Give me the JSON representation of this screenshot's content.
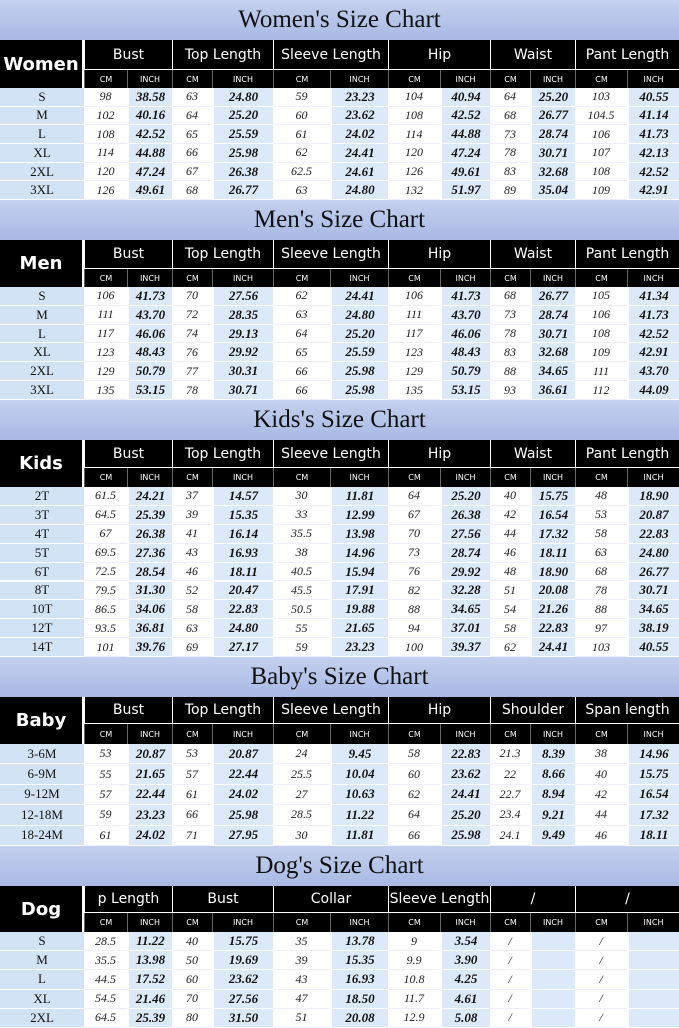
{
  "sections": [
    {
      "title": "Women's Size Chart",
      "label": "Women",
      "headers": [
        "Bust",
        "Top Length",
        "Sleeve Length",
        "Hip",
        "Waist",
        "Pant Length"
      ],
      "units": [
        "CM",
        "INCH",
        "CM",
        "INCH",
        "CM",
        "INCH",
        "CM",
        "INCH",
        "CM",
        "INCH",
        "CM",
        "INCH"
      ],
      "rows": [
        [
          "S",
          "98",
          "38.58",
          "63",
          "24.80",
          "59",
          "23.23",
          "104",
          "40.94",
          "64",
          "25.20",
          "103",
          "40.55"
        ],
        [
          "M",
          "102",
          "40.16",
          "64",
          "25.20",
          "60",
          "23.62",
          "108",
          "42.52",
          "68",
          "26.77",
          "104.5",
          "41.14"
        ],
        [
          "L",
          "108",
          "42.52",
          "65",
          "25.59",
          "61",
          "24.02",
          "114",
          "44.88",
          "73",
          "28.74",
          "106",
          "41.73"
        ],
        [
          "XL",
          "114",
          "44.88",
          "66",
          "25.98",
          "62",
          "24.41",
          "120",
          "47.24",
          "78",
          "30.71",
          "107",
          "42.13"
        ],
        [
          "2XL",
          "120",
          "47.24",
          "67",
          "26.38",
          "62.5",
          "24.61",
          "126",
          "49.61",
          "83",
          "32.68",
          "108",
          "42.52"
        ],
        [
          "3XL",
          "126",
          "49.61",
          "68",
          "26.77",
          "63",
          "24.80",
          "132",
          "51.97",
          "89",
          "35.04",
          "109",
          "42.91"
        ]
      ]
    },
    {
      "title": "Men's Size Chart",
      "label": "Men",
      "headers": [
        "Bust",
        "Top Length",
        "Sleeve Length",
        "Hip",
        "Waist",
        "Pant Length"
      ],
      "units": [
        "CM",
        "INCH",
        "CM",
        "INCH",
        "CM",
        "INCH",
        "CM",
        "INCH",
        "CM",
        "INCH",
        "CM",
        "INCH"
      ],
      "rows": [
        [
          "S",
          "106",
          "41.73",
          "70",
          "27.56",
          "62",
          "24.41",
          "106",
          "41.73",
          "68",
          "26.77",
          "105",
          "41.34"
        ],
        [
          "M",
          "111",
          "43.70",
          "72",
          "28.35",
          "63",
          "24.80",
          "111",
          "43.70",
          "73",
          "28.74",
          "106",
          "41.73"
        ],
        [
          "L",
          "117",
          "46.06",
          "74",
          "29.13",
          "64",
          "25.20",
          "117",
          "46.06",
          "78",
          "30.71",
          "108",
          "42.52"
        ],
        [
          "XL",
          "123",
          "48.43",
          "76",
          "29.92",
          "65",
          "25.59",
          "123",
          "48.43",
          "83",
          "32.68",
          "109",
          "42.91"
        ],
        [
          "2XL",
          "129",
          "50.79",
          "77",
          "30.31",
          "66",
          "25.98",
          "129",
          "50.79",
          "88",
          "34.65",
          "111",
          "43.70"
        ],
        [
          "3XL",
          "135",
          "53.15",
          "78",
          "30.71",
          "66",
          "25.98",
          "135",
          "53.15",
          "93",
          "36.61",
          "112",
          "44.09"
        ]
      ]
    },
    {
      "title": "Kids's  Size Chart",
      "label": "Kids",
      "headers": [
        "Bust",
        "Top Length",
        "Sleeve Length",
        "Hip",
        "Waist",
        "Pant Length"
      ],
      "units": [
        "CM",
        "INCH",
        "CM",
        "INCH",
        "CM",
        "INCH",
        "CM",
        "INCH",
        "CM",
        "INCH",
        "CM",
        "INCH"
      ],
      "rows": [
        [
          "2T",
          "61.5",
          "24.21",
          "37",
          "14.57",
          "30",
          "11.81",
          "64",
          "25.20",
          "40",
          "15.75",
          "48",
          "18.90"
        ],
        [
          "3T",
          "64.5",
          "25.39",
          "39",
          "15.35",
          "33",
          "12.99",
          "67",
          "26.38",
          "42",
          "16.54",
          "53",
          "20.87"
        ],
        [
          "4T",
          "67",
          "26.38",
          "41",
          "16.14",
          "35.5",
          "13.98",
          "70",
          "27.56",
          "44",
          "17.32",
          "58",
          "22.83"
        ],
        [
          "5T",
          "69.5",
          "27.36",
          "43",
          "16.93",
          "38",
          "14.96",
          "73",
          "28.74",
          "46",
          "18.11",
          "63",
          "24.80"
        ],
        [
          "6T",
          "72.5",
          "28.54",
          "46",
          "18.11",
          "40.5",
          "15.94",
          "76",
          "29.92",
          "48",
          "18.90",
          "68",
          "26.77"
        ],
        [
          "8T",
          "79.5",
          "31.30",
          "52",
          "20.47",
          "45.5",
          "17.91",
          "82",
          "32.28",
          "51",
          "20.08",
          "78",
          "30.71"
        ],
        [
          "10T",
          "86.5",
          "34.06",
          "58",
          "22.83",
          "50.5",
          "19.88",
          "88",
          "34.65",
          "54",
          "21.26",
          "88",
          "34.65"
        ],
        [
          "12T",
          "93.5",
          "36.81",
          "63",
          "24.80",
          "55",
          "21.65",
          "94",
          "37.01",
          "58",
          "22.83",
          "97",
          "38.19"
        ],
        [
          "14T",
          "101",
          "39.76",
          "69",
          "27.17",
          "59",
          "23.23",
          "100",
          "39.37",
          "62",
          "24.41",
          "103",
          "40.55"
        ]
      ]
    },
    {
      "title": "Baby's Size Chart",
      "label": "Baby",
      "headers": [
        "Bust",
        "Top Length",
        "Sleeve Length",
        "Hip",
        "Shoulder",
        "Span length"
      ],
      "units": [
        "CM",
        "INCH",
        "CM",
        "INCH",
        "CM",
        "INCH",
        "CM",
        "INCH",
        "CM",
        "INCH",
        "CM",
        "INCH"
      ],
      "rows": [
        [
          "3-6M",
          "53",
          "20.87",
          "53",
          "20.87",
          "24",
          "9.45",
          "58",
          "22.83",
          "21.3",
          "8.39",
          "38",
          "14.96"
        ],
        [
          "6-9M",
          "55",
          "21.65",
          "57",
          "22.44",
          "25.5",
          "10.04",
          "60",
          "23.62",
          "22",
          "8.66",
          "40",
          "15.75"
        ],
        [
          "9-12M",
          "57",
          "22.44",
          "61",
          "24.02",
          "27",
          "10.63",
          "62",
          "24.41",
          "22.7",
          "8.94",
          "42",
          "16.54"
        ],
        [
          "12-18M",
          "59",
          "23.23",
          "66",
          "25.98",
          "28.5",
          "11.22",
          "64",
          "25.20",
          "23.4",
          "9.21",
          "44",
          "17.32"
        ],
        [
          "18-24M",
          "61",
          "24.02",
          "71",
          "27.95",
          "30",
          "11.81",
          "66",
          "25.98",
          "24.1",
          "9.49",
          "46",
          "18.11"
        ]
      ]
    },
    {
      "title": "Dog's  Size Chart",
      "label": "Dog",
      "headers": [
        "p Length",
        "Bust",
        "Collar",
        "Sleeve Length",
        "/",
        "/"
      ],
      "units": [
        "CM",
        "INCH",
        "CM",
        "INCH",
        "CM",
        "INCH",
        "CM",
        "INCH",
        "CM",
        "INCH",
        "CM",
        "INCH"
      ],
      "rows": [
        [
          "S",
          "28.5",
          "11.22",
          "40",
          "15.75",
          "35",
          "13.78",
          "9",
          "3.54",
          "/",
          "/"
        ],
        [
          "M",
          "35.5",
          "13.98",
          "50",
          "19.69",
          "39",
          "15.35",
          "9.9",
          "3.90",
          "/",
          "/"
        ],
        [
          "L",
          "44.5",
          "17.52",
          "60",
          "23.62",
          "43",
          "16.93",
          "10.8",
          "4.25",
          "/",
          "/"
        ],
        [
          "XL",
          "54.5",
          "21.46",
          "70",
          "27.56",
          "47",
          "18.50",
          "11.7",
          "4.61",
          "/",
          "/"
        ],
        [
          "2XL",
          "64.5",
          "25.39",
          "80",
          "31.50",
          "51",
          "20.08",
          "12.9",
          "5.08",
          "/",
          "/"
        ]
      ]
    }
  ]
}
